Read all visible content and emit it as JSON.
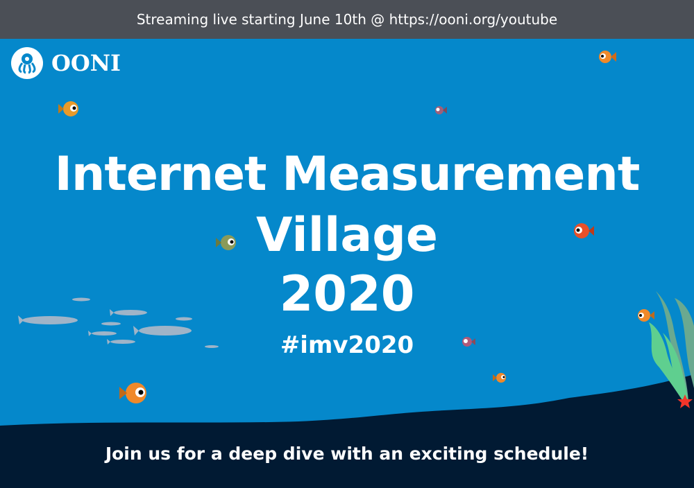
{
  "banner": {
    "text": "Streaming live starting June 10th @ https://ooni.org/youtube"
  },
  "logo": {
    "text": "OONI",
    "icon": "octopus-icon"
  },
  "main": {
    "title_line1": "Internet Measurement",
    "title_line2": "Village",
    "title_line3": "2020",
    "hashtag": "#imv2020"
  },
  "footer": {
    "text": "Join us for a deep dive with an exciting schedule!"
  },
  "colors": {
    "banner": "#4b4f56",
    "water": "#0588cb",
    "seabed": "#011a33",
    "fish_orange": "#f0892a",
    "fish_red": "#e8502a",
    "seaweed": "#5fcf8f",
    "starfish": "#f2352a"
  }
}
